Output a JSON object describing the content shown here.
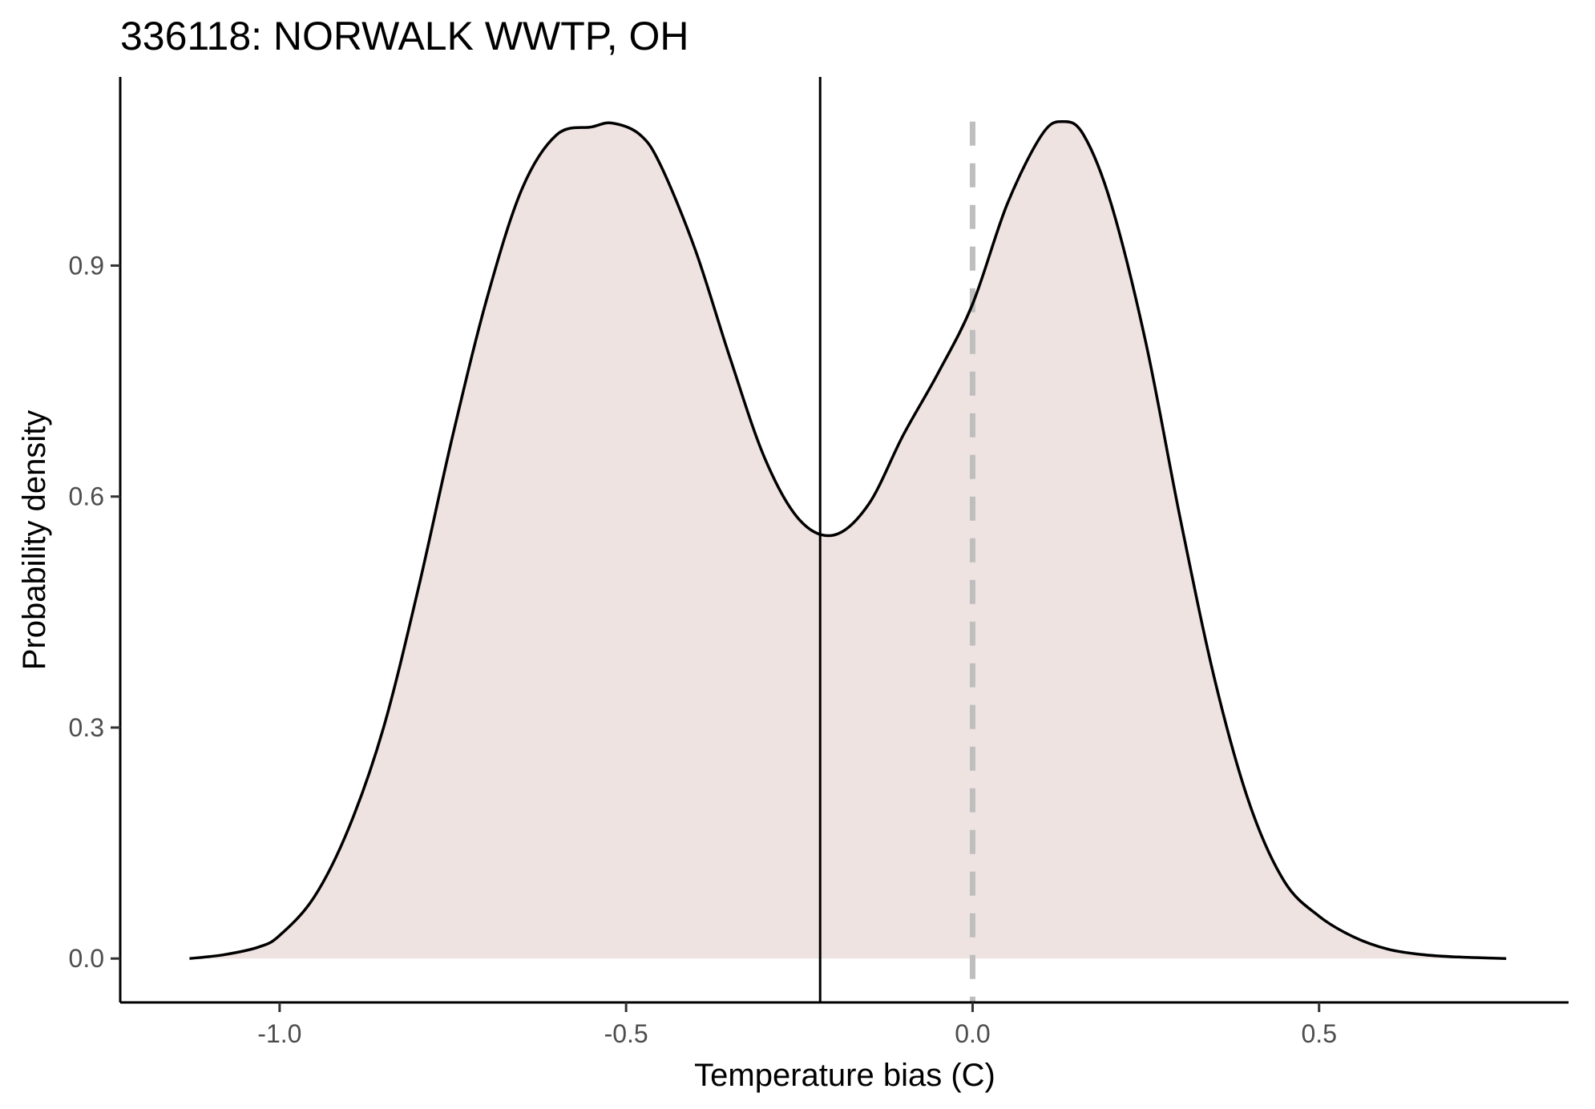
{
  "chart_data": {
    "type": "area",
    "title": "336118: NORWALK WWTP, OH",
    "xlabel": "Temperature bias (C)",
    "ylabel": "Probability density",
    "xlim": [
      -1.23,
      0.86
    ],
    "ylim": [
      -0.057,
      1.145
    ],
    "x_ticks": [
      -1.0,
      -0.5,
      0.0,
      0.5
    ],
    "x_tick_labels": [
      "-1.0",
      "-0.5",
      "0.0",
      "0.5"
    ],
    "y_ticks": [
      0.0,
      0.3,
      0.6,
      0.9
    ],
    "y_tick_labels": [
      "0.0",
      "0.3",
      "0.6",
      "0.9"
    ],
    "grid": false,
    "legend": "none",
    "series": [
      {
        "x": [
          -1.13,
          -1.08,
          -1.03,
          -1.0,
          -0.95,
          -0.9,
          -0.85,
          -0.8,
          -0.75,
          -0.7,
          -0.65,
          -0.6,
          -0.55,
          -0.52,
          -0.48,
          -0.45,
          -0.4,
          -0.35,
          -0.3,
          -0.25,
          -0.2,
          -0.15,
          -0.1,
          -0.05,
          0.0,
          0.05,
          0.1,
          0.13,
          0.16,
          0.2,
          0.25,
          0.3,
          0.35,
          0.4,
          0.45,
          0.5,
          0.55,
          0.6,
          0.65,
          0.7,
          0.77
        ],
        "y": [
          0.0,
          0.005,
          0.015,
          0.03,
          0.08,
          0.17,
          0.3,
          0.48,
          0.68,
          0.86,
          1.0,
          1.07,
          1.08,
          1.085,
          1.07,
          1.03,
          0.92,
          0.78,
          0.65,
          0.57,
          0.55,
          0.59,
          0.68,
          0.76,
          0.85,
          0.98,
          1.07,
          1.087,
          1.07,
          0.98,
          0.8,
          0.57,
          0.36,
          0.2,
          0.1,
          0.055,
          0.028,
          0.012,
          0.005,
          0.002,
          0.0
        ]
      }
    ],
    "vlines": [
      {
        "x": -0.22,
        "style": "solid",
        "color": "#000000"
      },
      {
        "x": 0.0,
        "style": "dashed",
        "color": "#bebebe"
      }
    ],
    "colors": {
      "fill": "#eee3e1",
      "curve": "#000000",
      "axis": "#000000"
    }
  }
}
